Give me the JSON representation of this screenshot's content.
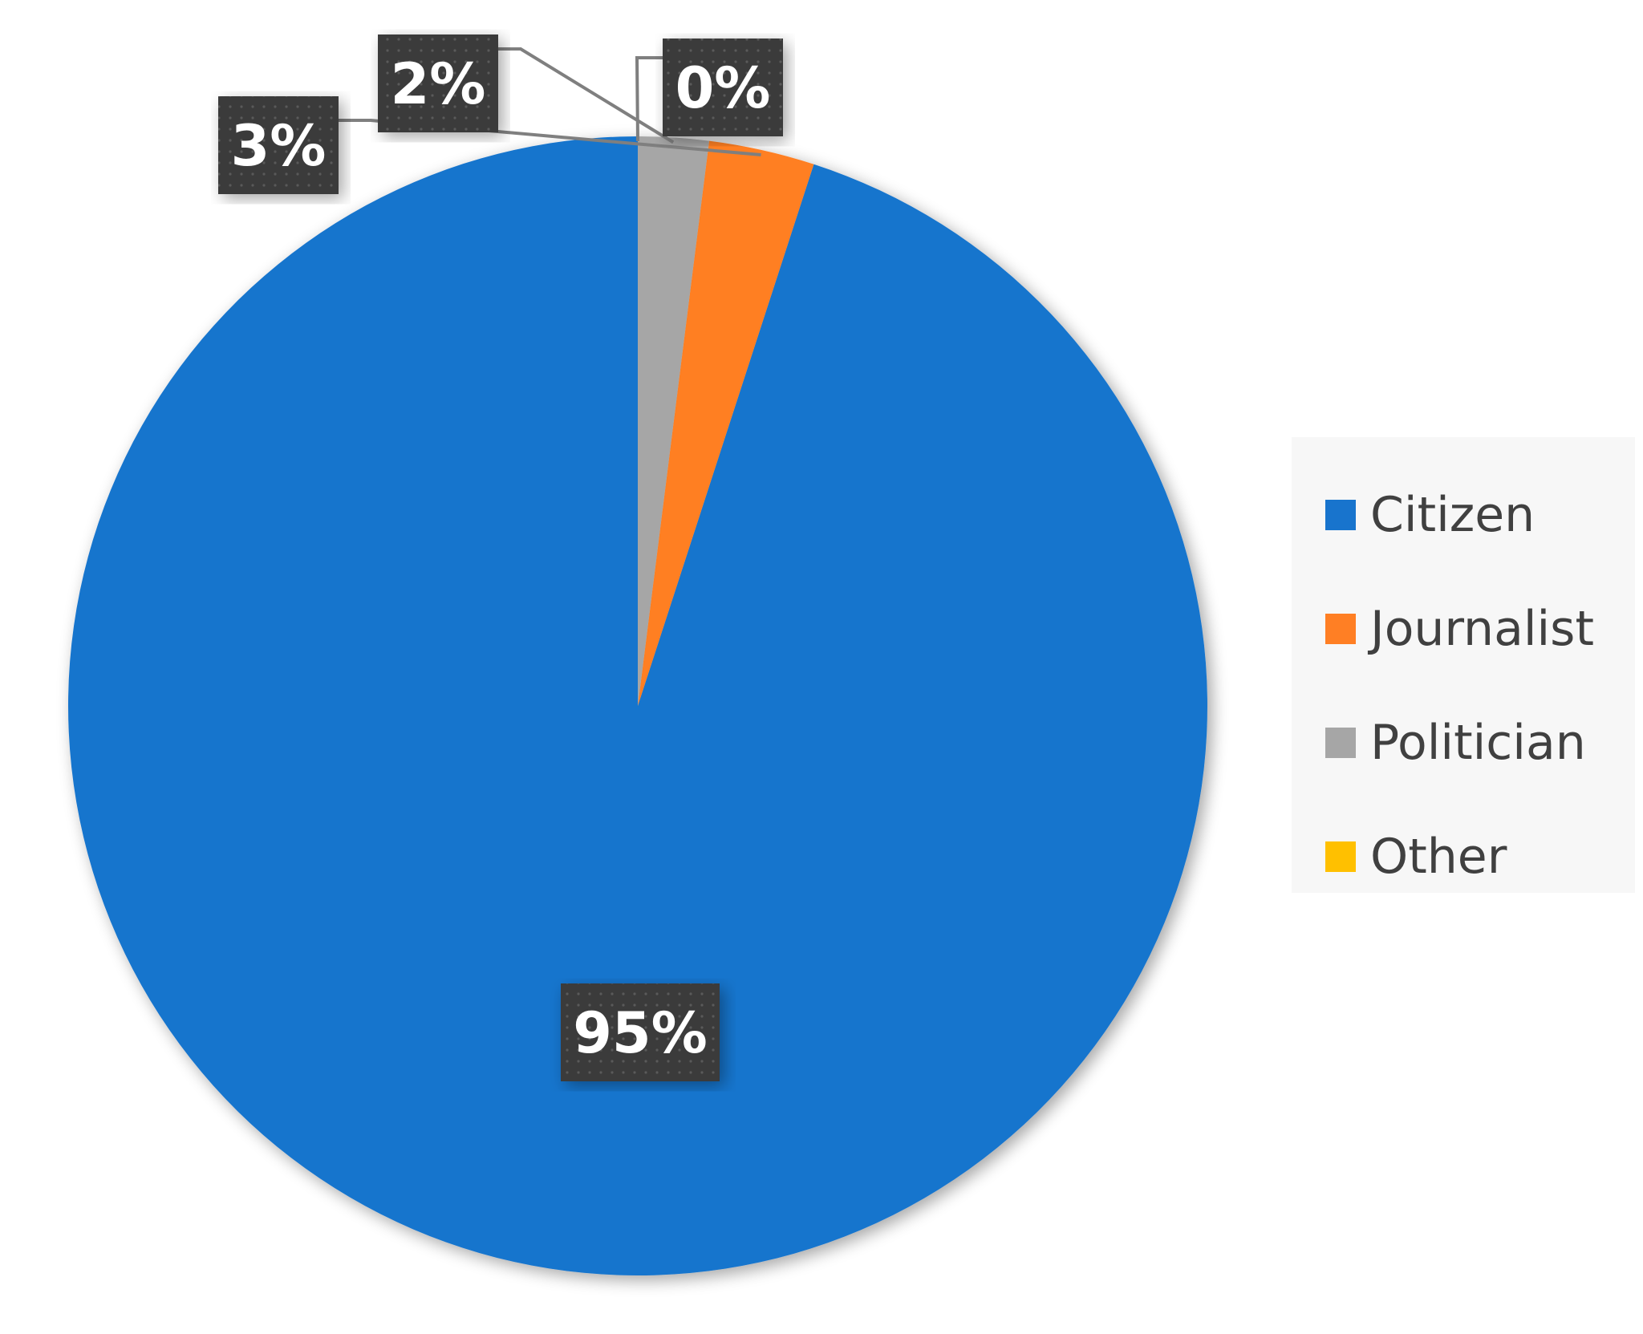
{
  "chart_data": {
    "type": "pie",
    "categories": [
      "Citizen",
      "Journalist",
      "Politician",
      "Other"
    ],
    "values": [
      95,
      3,
      2,
      0
    ],
    "data_labels": [
      "95%",
      "3%",
      "2%",
      "0%"
    ],
    "colors": [
      "#1874CD",
      "#FF7F24",
      "#A6A6A6",
      "#FFC000"
    ],
    "start_angle_deg": 0,
    "direction": "counterclockwise",
    "legend": {
      "placement": "right",
      "entries": [
        "Citizen",
        "Journalist",
        "Politician",
        "Other"
      ]
    },
    "title": "",
    "label_style": {
      "box_color": "#3a3a3a",
      "text_color": "#ffffff"
    }
  }
}
